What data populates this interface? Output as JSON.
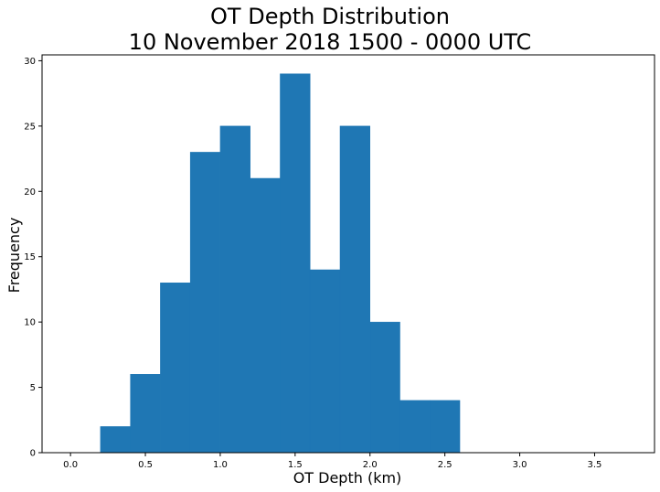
{
  "chart_data": {
    "type": "bar",
    "title": [
      "OT Depth Distribution",
      "10 November 2018 1500 - 0000 UTC"
    ],
    "xlabel": "OT Depth (km)",
    "ylabel": "Frequency",
    "xlim": [
      -0.19,
      3.9
    ],
    "ylim": [
      0,
      30.45
    ],
    "xticks": [
      "0.0",
      "0.5",
      "1.0",
      "1.5",
      "2.0",
      "2.5",
      "3.0",
      "3.5"
    ],
    "yticks": [
      "0",
      "5",
      "10",
      "15",
      "20",
      "25",
      "30"
    ],
    "bin_width": 0.2,
    "bins": [
      {
        "x0": 0.2,
        "x1": 0.4,
        "count": 2
      },
      {
        "x0": 0.4,
        "x1": 0.6,
        "count": 6
      },
      {
        "x0": 0.6,
        "x1": 0.8,
        "count": 13
      },
      {
        "x0": 0.8,
        "x1": 1.0,
        "count": 23
      },
      {
        "x0": 1.0,
        "x1": 1.2,
        "count": 25
      },
      {
        "x0": 1.2,
        "x1": 1.4,
        "count": 21
      },
      {
        "x0": 1.4,
        "x1": 1.6,
        "count": 29
      },
      {
        "x0": 1.6,
        "x1": 1.8,
        "count": 14
      },
      {
        "x0": 1.8,
        "x1": 2.0,
        "count": 25
      },
      {
        "x0": 2.0,
        "x1": 2.2,
        "count": 10
      },
      {
        "x0": 2.2,
        "x1": 2.4,
        "count": 4
      },
      {
        "x0": 2.4,
        "x1": 2.6,
        "count": 4
      }
    ],
    "bar_color": "#1f77b4",
    "grid": false,
    "legend": "none"
  }
}
